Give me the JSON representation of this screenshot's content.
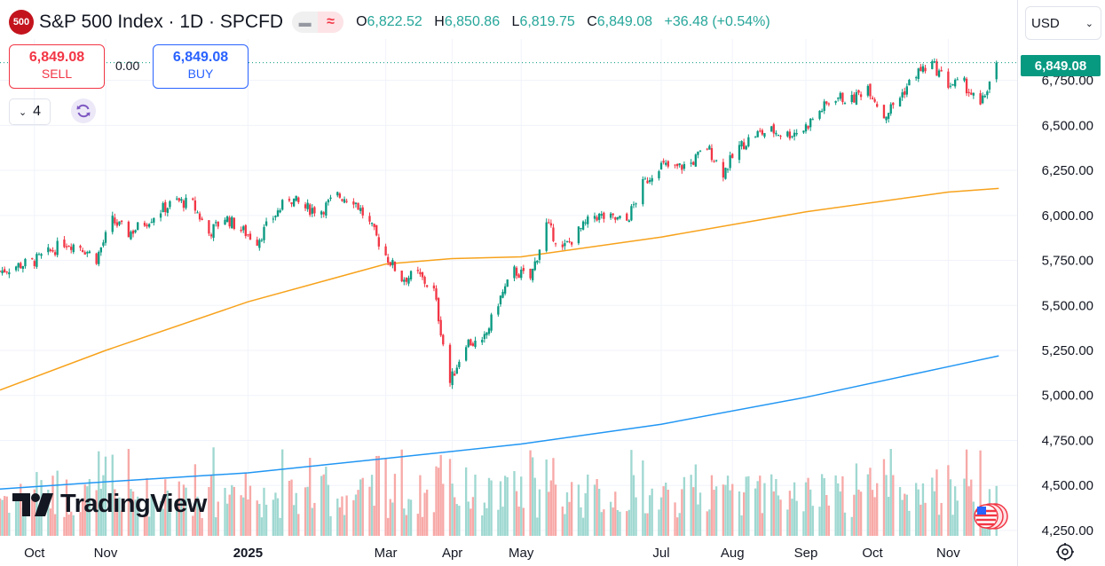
{
  "header": {
    "logo_text": "500",
    "title": "S&P 500 Index · 1D · SPCFD",
    "pill_icon_left": "minus-icon",
    "pill_icon_right": "approx-icon",
    "open_label": "O",
    "open": "6,822.52",
    "high_label": "H",
    "high": "6,850.86",
    "low_label": "L",
    "low": "6,819.75",
    "close_label": "C",
    "close": "6,849.08",
    "change": "+36.48 (+0.54%)"
  },
  "trade": {
    "sell_price": "6,849.08",
    "sell_label": "SELL",
    "spread": "0.00",
    "buy_price": "6,849.08",
    "buy_label": "BUY"
  },
  "controls": {
    "layout_count": "4",
    "sync_icon": "sync-icon"
  },
  "currency": {
    "label": "USD"
  },
  "last_price_label": "6,849.08",
  "brand": {
    "logo_text": "TradingView"
  },
  "colors": {
    "up": "#089981",
    "down": "#f23645",
    "ma_fast": "#f7a21b",
    "ma_slow": "#2196f3",
    "vol_up": "#9fd8d1",
    "vol_down": "#f7a9a7",
    "accent": "#2962ff"
  },
  "chart_data": {
    "type": "candlestick",
    "title": "S&P 500 Index · 1D · SPCFD",
    "interval": "1D",
    "last_price": 6849.08,
    "y_axis": {
      "ticks": [
        "4,250.00",
        "4,500.00",
        "4,750.00",
        "5,000.00",
        "5,250.00",
        "5,500.00",
        "5,750.00",
        "6,000.00",
        "6,250.00",
        "6,500.00",
        "6,750.00"
      ],
      "range": [
        4220,
        6980
      ],
      "scale": "linear"
    },
    "x_axis": {
      "ticks": [
        {
          "label": "Oct",
          "date": "2024-10-01"
        },
        {
          "label": "Nov",
          "date": "2024-11-01"
        },
        {
          "label": "2025",
          "date": "2025-01-02"
        },
        {
          "label": "Mar",
          "date": "2025-03-03"
        },
        {
          "label": "Apr",
          "date": "2025-04-01"
        },
        {
          "label": "May",
          "date": "2025-05-01"
        },
        {
          "label": "Jul",
          "date": "2025-07-01"
        },
        {
          "label": "Aug",
          "date": "2025-08-01"
        },
        {
          "label": "Sep",
          "date": "2025-09-02"
        },
        {
          "label": "Oct",
          "date": "2025-10-01"
        },
        {
          "label": "Nov",
          "date": "2025-11-03"
        }
      ],
      "range": [
        "2024-09-16",
        "2025-12-03"
      ]
    },
    "series": [
      {
        "kind": "close",
        "points": [
          [
            "2024-09-16",
            5690
          ],
          [
            "2024-09-23",
            5720
          ],
          [
            "2024-09-30",
            5740
          ],
          [
            "2024-10-07",
            5790
          ],
          [
            "2024-10-14",
            5850
          ],
          [
            "2024-10-21",
            5830
          ],
          [
            "2024-10-28",
            5760
          ],
          [
            "2024-11-04",
            5970
          ],
          [
            "2024-11-11",
            5900
          ],
          [
            "2024-11-18",
            5960
          ],
          [
            "2024-11-25",
            6030
          ],
          [
            "2024-12-02",
            6080
          ],
          [
            "2024-12-09",
            6060
          ],
          [
            "2024-12-16",
            5900
          ],
          [
            "2024-12-23",
            5990
          ],
          [
            "2024-12-30",
            5920
          ],
          [
            "2025-01-06",
            5860
          ],
          [
            "2025-01-13",
            5990
          ],
          [
            "2025-01-20",
            6100
          ],
          [
            "2025-01-27",
            6040
          ],
          [
            "2025-02-03",
            6030
          ],
          [
            "2025-02-10",
            6110
          ],
          [
            "2025-02-17",
            6090
          ],
          [
            "2025-02-24",
            5950
          ],
          [
            "2025-03-03",
            5780
          ],
          [
            "2025-03-10",
            5650
          ],
          [
            "2025-03-17",
            5670
          ],
          [
            "2025-03-24",
            5580
          ],
          [
            "2025-03-31",
            5070
          ],
          [
            "2025-04-07",
            5300
          ],
          [
            "2025-04-14",
            5280
          ],
          [
            "2025-04-21",
            5520
          ],
          [
            "2025-04-28",
            5690
          ],
          [
            "2025-05-05",
            5650
          ],
          [
            "2025-05-12",
            5950
          ],
          [
            "2025-05-19",
            5810
          ],
          [
            "2025-05-26",
            5910
          ],
          [
            "2025-06-02",
            6000
          ],
          [
            "2025-06-09",
            5980
          ],
          [
            "2025-06-16",
            5970
          ],
          [
            "2025-06-23",
            6170
          ],
          [
            "2025-06-30",
            6280
          ],
          [
            "2025-07-07",
            6260
          ],
          [
            "2025-07-14",
            6290
          ],
          [
            "2025-07-21",
            6380
          ],
          [
            "2025-07-28",
            6240
          ],
          [
            "2025-08-04",
            6380
          ],
          [
            "2025-08-11",
            6450
          ],
          [
            "2025-08-18",
            6470
          ],
          [
            "2025-08-25",
            6450
          ],
          [
            "2025-09-01",
            6480
          ],
          [
            "2025-09-08",
            6580
          ],
          [
            "2025-09-15",
            6660
          ],
          [
            "2025-09-22",
            6640
          ],
          [
            "2025-09-29",
            6720
          ],
          [
            "2025-10-06",
            6550
          ],
          [
            "2025-10-13",
            6660
          ],
          [
            "2025-10-20",
            6790
          ],
          [
            "2025-10-27",
            6840
          ],
          [
            "2025-11-03",
            6730
          ],
          [
            "2025-11-10",
            6730
          ],
          [
            "2025-11-17",
            6600
          ],
          [
            "2025-11-24",
            6849.08
          ]
        ]
      },
      {
        "kind": "moving_average_fast",
        "points": [
          [
            "2024-09-16",
            5030
          ],
          [
            "2024-11-01",
            5250
          ],
          [
            "2025-01-02",
            5520
          ],
          [
            "2025-03-03",
            5730
          ],
          [
            "2025-04-01",
            5760
          ],
          [
            "2025-05-01",
            5770
          ],
          [
            "2025-07-01",
            5880
          ],
          [
            "2025-09-02",
            6020
          ],
          [
            "2025-11-03",
            6130
          ],
          [
            "2025-11-25",
            6150
          ]
        ]
      },
      {
        "kind": "moving_average_slow",
        "points": [
          [
            "2024-09-16",
            4480
          ],
          [
            "2024-11-01",
            4520
          ],
          [
            "2025-01-02",
            4570
          ],
          [
            "2025-03-03",
            4650
          ],
          [
            "2025-05-01",
            4730
          ],
          [
            "2025-07-01",
            4840
          ],
          [
            "2025-09-02",
            4990
          ],
          [
            "2025-11-03",
            5160
          ],
          [
            "2025-11-25",
            5220
          ]
        ]
      }
    ],
    "volume": {
      "shown": true,
      "placement": "bottom"
    },
    "legend": "none",
    "grid": true
  }
}
